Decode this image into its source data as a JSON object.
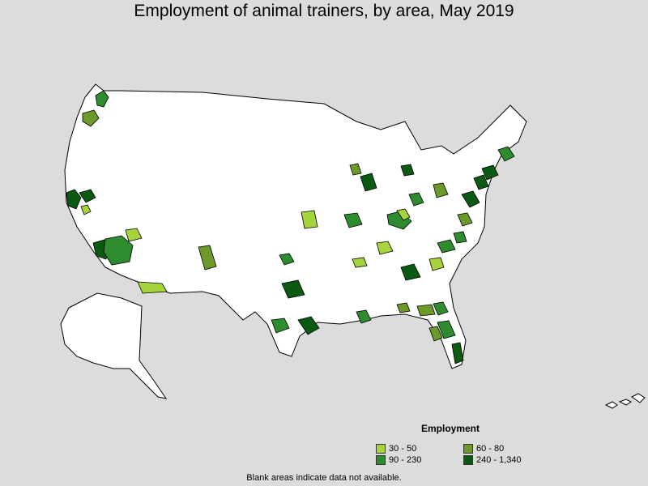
{
  "title": "Employment of animal trainers, by area, May 2019",
  "legend": {
    "title": "Employment",
    "items": [
      {
        "label": "30 - 50",
        "color": "#a6d43c"
      },
      {
        "label": "60 - 80",
        "color": "#6b9a2a"
      },
      {
        "label": "90 - 230",
        "color": "#2e8b2e"
      },
      {
        "label": "240 - 1,340",
        "color": "#0b5a12"
      }
    ]
  },
  "footnote": "Blank areas indicate data not available.",
  "colors": {
    "background": "#dcdcdc",
    "land": "#ffffff",
    "border": "#000000"
  }
}
